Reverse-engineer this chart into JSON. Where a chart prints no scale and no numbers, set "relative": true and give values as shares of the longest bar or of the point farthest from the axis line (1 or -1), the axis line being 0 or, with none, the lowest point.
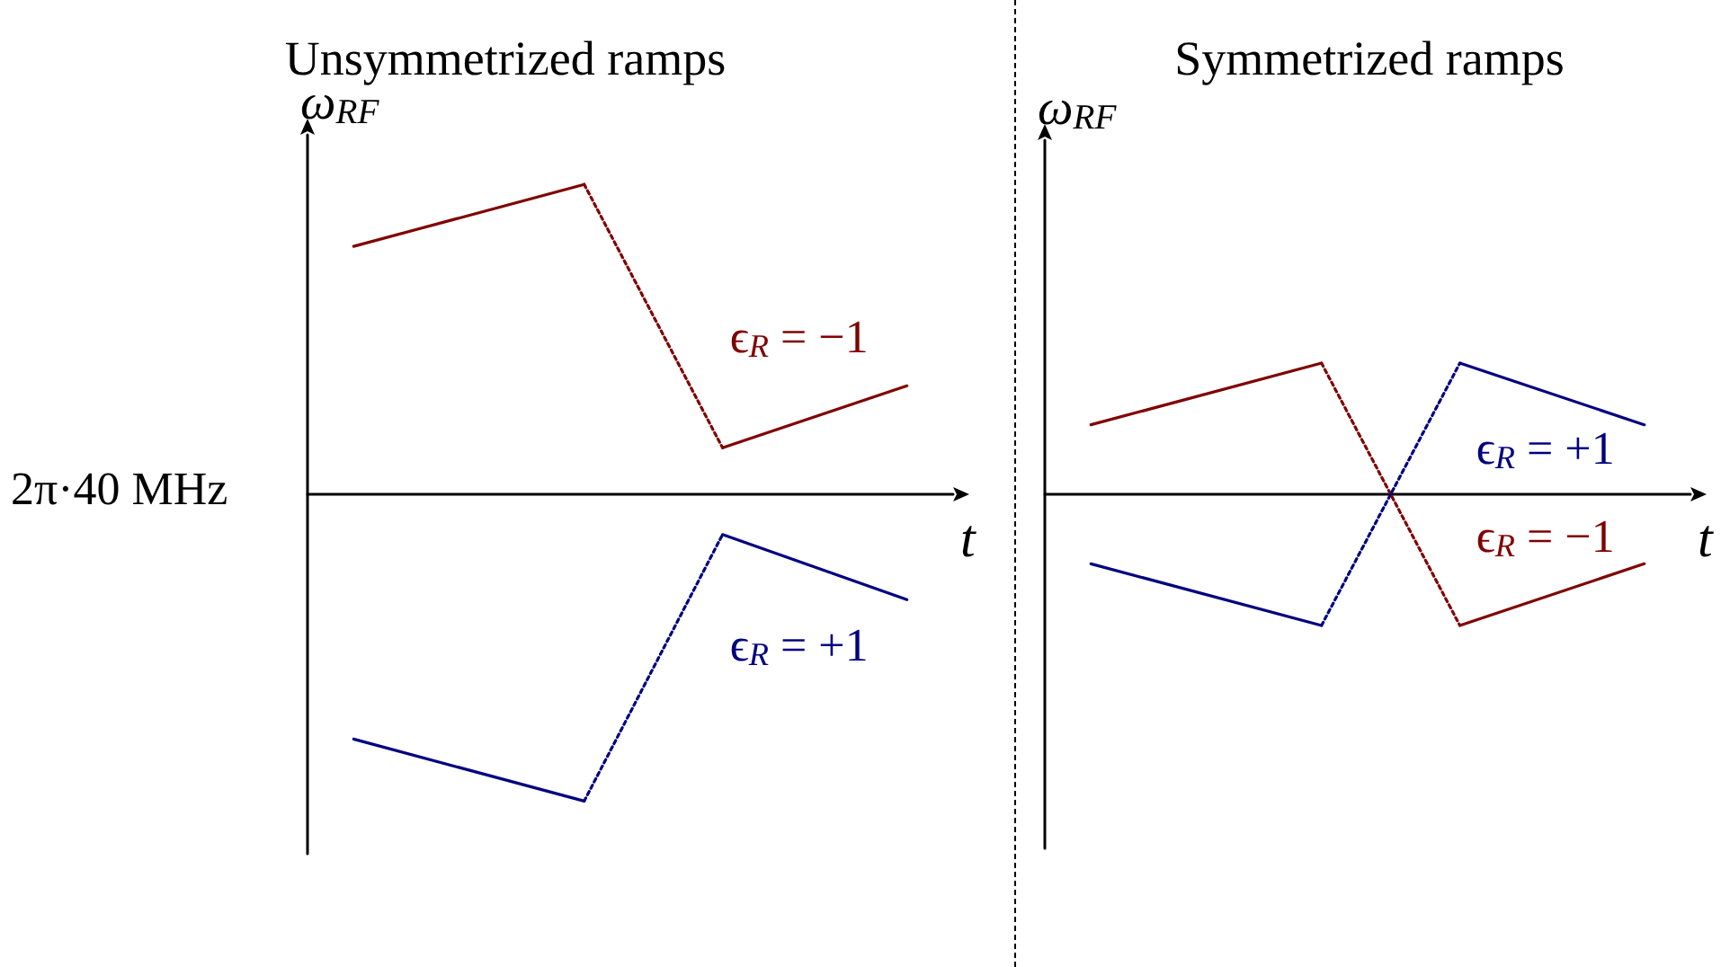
{
  "chart_data": [
    {
      "type": "line",
      "title": "Unsymmetrized ramps",
      "xlabel": "t",
      "ylabel": "ω$_{RF}$",
      "relative": true,
      "categories": [
        null,
        null,
        null,
        null,
        null,
        null,
        null,
        null,
        null,
        null,
        null,
        null,
        null,
        null,
        null
      ],
      "grid": false,
      "marker": "none",
      "annotations": [
        "2π·40 MHz"
      ],
      "series": [
        {
          "color": "#800000",
          "line_style": "solid",
          "values": [
            null,
            0.8,
            null,
            null,
            null,
            null,
            1.0,
            null,
            null,
            null,
            null,
            null,
            null,
            null,
            null
          ]
        },
        {
          "color": "#800000",
          "line_style": "dotted",
          "values": [
            null,
            null,
            null,
            null,
            null,
            null,
            1.0,
            null,
            null,
            0.15,
            null,
            null,
            null,
            null,
            null
          ]
        },
        {
          "name": "ϵ$_{R}$ = −1",
          "color": "#800000",
          "line_style": "solid",
          "values": [
            null,
            null,
            null,
            null,
            null,
            null,
            null,
            null,
            null,
            0.15,
            null,
            null,
            null,
            0.35,
            null
          ]
        },
        {
          "color": "#000080",
          "line_style": "solid",
          "values": [
            null,
            -0.79,
            null,
            null,
            null,
            null,
            -0.99,
            null,
            null,
            null,
            null,
            null,
            null,
            null,
            null
          ]
        },
        {
          "color": "#000080",
          "line_style": "dotted",
          "values": [
            null,
            null,
            null,
            null,
            null,
            null,
            -0.99,
            null,
            null,
            -0.13,
            null,
            null,
            null,
            null,
            null
          ]
        },
        {
          "name": "ϵ$_{R}$ = +1",
          "color": "#000080",
          "line_style": "solid",
          "values": [
            null,
            null,
            null,
            null,
            null,
            null,
            null,
            null,
            null,
            -0.13,
            null,
            null,
            null,
            -0.34,
            null
          ]
        }
      ]
    },
    {
      "type": "line",
      "title": "Symmetrized ramps",
      "xlabel": "t",
      "ylabel": "ω$_{RF}$",
      "relative": true,
      "categories": [
        null,
        null,
        null,
        null,
        null,
        null,
        null,
        null,
        null,
        null,
        null,
        null,
        null,
        null,
        null
      ],
      "grid": false,
      "marker": "none",
      "series": [
        {
          "color": "#800000",
          "line_style": "solid",
          "values": [
            null,
            0.53,
            null,
            null,
            null,
            null,
            1.0,
            null,
            null,
            null,
            null,
            null,
            null,
            null,
            null
          ]
        },
        {
          "color": "#800000",
          "line_style": "dotted",
          "values": [
            null,
            null,
            null,
            null,
            null,
            null,
            1.0,
            null,
            null,
            -1.0,
            null,
            null,
            null,
            null,
            null
          ]
        },
        {
          "name": "ϵ$_{R}$ = −1",
          "color": "#800000",
          "line_style": "solid",
          "values": [
            null,
            null,
            null,
            null,
            null,
            null,
            null,
            null,
            null,
            -1.0,
            null,
            null,
            null,
            -0.53,
            null
          ]
        },
        {
          "color": "#000080",
          "line_style": "solid",
          "values": [
            null,
            -0.53,
            null,
            null,
            null,
            null,
            -1.0,
            null,
            null,
            null,
            null,
            null,
            null,
            null,
            null
          ]
        },
        {
          "color": "#000080",
          "line_style": "dotted",
          "values": [
            null,
            null,
            null,
            null,
            null,
            null,
            -1.0,
            null,
            null,
            1.0,
            null,
            null,
            null,
            null,
            null
          ]
        },
        {
          "name": "ϵ$_{R}$ = +1",
          "color": "#000080",
          "line_style": "solid",
          "values": [
            null,
            null,
            null,
            null,
            null,
            null,
            null,
            null,
            null,
            1.0,
            null,
            null,
            null,
            0.53,
            null
          ]
        }
      ]
    }
  ]
}
